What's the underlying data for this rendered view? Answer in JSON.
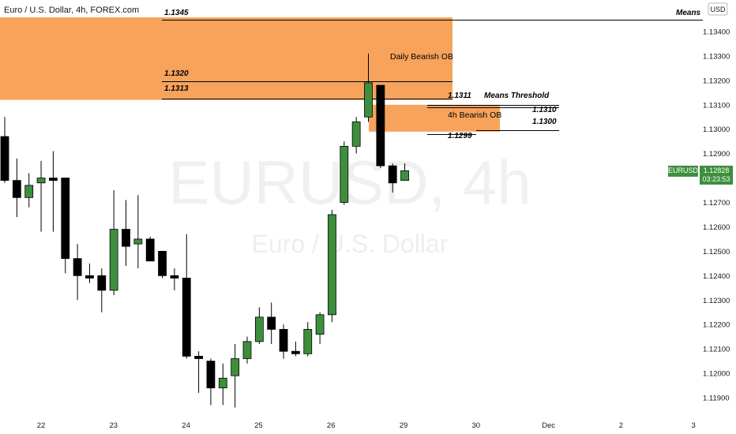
{
  "header": {
    "title": "Euro / U.S. Dollar, 4h, FOREX.com",
    "currency_label": "USD"
  },
  "watermark": {
    "symbol": "EURUSD, 4h",
    "name": "Euro / U.S. Dollar"
  },
  "price_axis": {
    "ticks": [
      "1.13400",
      "1.13300",
      "1.13200",
      "1.13100",
      "1.13000",
      "1.12900",
      "1.12800",
      "1.12700",
      "1.12600",
      "1.12500",
      "1.12400",
      "1.12300",
      "1.12200",
      "1.12100",
      "1.12000",
      "1.11900"
    ],
    "last_price": "1.12828",
    "countdown": "03:23:53",
    "symbol_tag": "EURUSD",
    "tag_color": "#3d8f3d"
  },
  "time_axis": {
    "labels": [
      "22",
      "23",
      "24",
      "25",
      "26",
      "29",
      "30",
      "Dec",
      "2",
      "3"
    ]
  },
  "zones": {
    "daily_ob": {
      "label": "Daily Bearish OB",
      "color": "#f7a35c",
      "top": 1.134,
      "bottom": 1.1312
    },
    "h4_ob": {
      "label": "4h Bearish OB",
      "color": "#f7a35c",
      "top": 1.131,
      "bottom": 1.1299
    }
  },
  "levels": {
    "l1345": {
      "text": "1.1345",
      "price": 1.1345
    },
    "means_top": "Means",
    "l1320": {
      "text": "1.1320",
      "price": 1.13195
    },
    "l1313": {
      "text": "1.1313",
      "price": 1.13125
    },
    "l1311": {
      "text": "1.1311",
      "price": 1.131
    },
    "means_threshold": "Means Threshold",
    "l1310": {
      "text": "1.1310",
      "price": 1.1309
    },
    "l1300": {
      "text": "1.1300",
      "price": 1.12995
    },
    "l1299": {
      "text": "1.1299",
      "price": 1.1298
    }
  },
  "colors": {
    "up": "#3d8f3d",
    "down": "#000000",
    "wick": "#000000"
  },
  "chart_data": {
    "type": "candlestick",
    "symbol": "EURUSD",
    "timeframe": "4h",
    "ylim": [
      1.1185,
      1.135
    ],
    "candles": [
      {
        "o": 1.1297,
        "h": 1.1305,
        "l": 1.1278,
        "c": 1.1279
      },
      {
        "o": 1.1279,
        "h": 1.1288,
        "l": 1.1264,
        "c": 1.1272
      },
      {
        "o": 1.1272,
        "h": 1.1282,
        "l": 1.1268,
        "c": 1.1277
      },
      {
        "o": 1.1278,
        "h": 1.1287,
        "l": 1.1258,
        "c": 1.128
      },
      {
        "o": 1.128,
        "h": 1.1291,
        "l": 1.1258,
        "c": 1.1279
      },
      {
        "o": 1.128,
        "h": 1.128,
        "l": 1.1241,
        "c": 1.1247
      },
      {
        "o": 1.1247,
        "h": 1.1253,
        "l": 1.123,
        "c": 1.124
      },
      {
        "o": 1.124,
        "h": 1.1245,
        "l": 1.1237,
        "c": 1.1239
      },
      {
        "o": 1.124,
        "h": 1.1243,
        "l": 1.1225,
        "c": 1.1234
      },
      {
        "o": 1.1234,
        "h": 1.1275,
        "l": 1.1232,
        "c": 1.1259
      },
      {
        "o": 1.1259,
        "h": 1.1271,
        "l": 1.1244,
        "c": 1.1252
      },
      {
        "o": 1.1253,
        "h": 1.1273,
        "l": 1.1243,
        "c": 1.1255
      },
      {
        "o": 1.1255,
        "h": 1.1256,
        "l": 1.1246,
        "c": 1.1246
      },
      {
        "o": 1.125,
        "h": 1.125,
        "l": 1.1239,
        "c": 1.124
      },
      {
        "o": 1.124,
        "h": 1.1243,
        "l": 1.1234,
        "c": 1.1239
      },
      {
        "o": 1.1239,
        "h": 1.1257,
        "l": 1.1206,
        "c": 1.1207
      },
      {
        "o": 1.1207,
        "h": 1.1209,
        "l": 1.1192,
        "c": 1.1206
      },
      {
        "o": 1.1205,
        "h": 1.1206,
        "l": 1.1187,
        "c": 1.1194
      },
      {
        "o": 1.1194,
        "h": 1.1204,
        "l": 1.1187,
        "c": 1.1198
      },
      {
        "o": 1.1199,
        "h": 1.1212,
        "l": 1.1186,
        "c": 1.1206
      },
      {
        "o": 1.1206,
        "h": 1.1215,
        "l": 1.1204,
        "c": 1.1213
      },
      {
        "o": 1.1213,
        "h": 1.1227,
        "l": 1.1212,
        "c": 1.1223
      },
      {
        "o": 1.1223,
        "h": 1.1229,
        "l": 1.1212,
        "c": 1.1218
      },
      {
        "o": 1.1218,
        "h": 1.122,
        "l": 1.1206,
        "c": 1.1209
      },
      {
        "o": 1.1209,
        "h": 1.1213,
        "l": 1.1207,
        "c": 1.1208
      },
      {
        "o": 1.1208,
        "h": 1.1221,
        "l": 1.1207,
        "c": 1.1218
      },
      {
        "o": 1.1216,
        "h": 1.1225,
        "l": 1.1212,
        "c": 1.1224
      },
      {
        "o": 1.1224,
        "h": 1.1267,
        "l": 1.1221,
        "c": 1.1265
      },
      {
        "o": 1.127,
        "h": 1.1295,
        "l": 1.1269,
        "c": 1.1293
      },
      {
        "o": 1.1293,
        "h": 1.1305,
        "l": 1.129,
        "c": 1.1303
      },
      {
        "o": 1.1305,
        "h": 1.1331,
        "l": 1.1303,
        "c": 1.1319
      },
      {
        "o": 1.1318,
        "h": 1.1318,
        "l": 1.1284,
        "c": 1.1285
      },
      {
        "o": 1.1285,
        "h": 1.1286,
        "l": 1.1274,
        "c": 1.1278
      },
      {
        "o": 1.1279,
        "h": 1.1286,
        "l": 1.1279,
        "c": 1.1283
      }
    ]
  }
}
